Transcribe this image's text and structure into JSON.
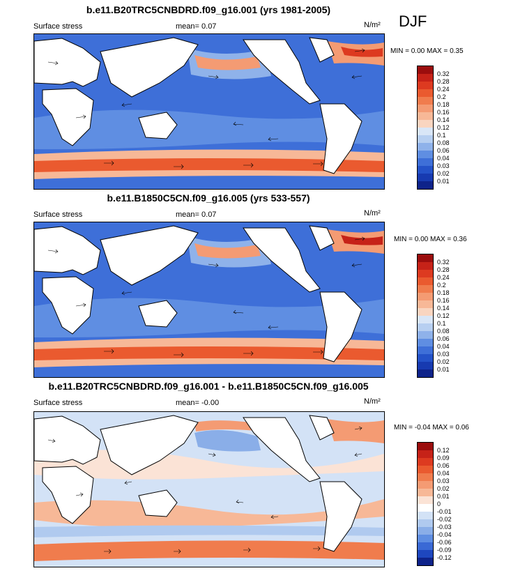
{
  "season": "DJF",
  "panels": [
    {
      "title": "b.e11.B20TRC5CNBDRD.f09_g16.001 (yrs 1981-2005)",
      "variable": "Surface stress",
      "mean_label": "mean=",
      "mean_value": "0.07",
      "units": "N/m²",
      "min_label": "MIN =",
      "min_value": "0.00",
      "max_label": "MAX =",
      "max_value": "0.35",
      "colorbar": {
        "levels": [
          "0.32",
          "0.28",
          "0.24",
          "0.2",
          "0.18",
          "0.16",
          "0.14",
          "0.12",
          "0.1",
          "0.08",
          "0.06",
          "0.04",
          "0.03",
          "0.02",
          "0.01"
        ],
        "colors": [
          "#9b0d0d",
          "#c62218",
          "#dd3a20",
          "#ea5a2f",
          "#f07c4d",
          "#f49b73",
          "#f7b897",
          "#f9d5c0",
          "#d9e6f7",
          "#b7cff1",
          "#8fb2ea",
          "#5f8ee2",
          "#3e6fd8",
          "#2452c8",
          "#173ab0",
          "#0e238a"
        ]
      }
    },
    {
      "title": "b.e11.B1850C5CN.f09_g16.005 (yrs 533-557)",
      "variable": "Surface stress",
      "mean_label": "mean=",
      "mean_value": "0.07",
      "units": "N/m²",
      "min_label": "MIN =",
      "min_value": "0.00",
      "max_label": "MAX =",
      "max_value": "0.36",
      "colorbar": {
        "levels": [
          "0.32",
          "0.28",
          "0.24",
          "0.2",
          "0.18",
          "0.16",
          "0.14",
          "0.12",
          "0.1",
          "0.08",
          "0.06",
          "0.04",
          "0.03",
          "0.02",
          "0.01"
        ],
        "colors": [
          "#9b0d0d",
          "#c62218",
          "#dd3a20",
          "#ea5a2f",
          "#f07c4d",
          "#f49b73",
          "#f7b897",
          "#f9d5c0",
          "#d9e6f7",
          "#b7cff1",
          "#8fb2ea",
          "#5f8ee2",
          "#3e6fd8",
          "#2452c8",
          "#173ab0",
          "#0e238a"
        ]
      }
    },
    {
      "title": "b.e11.B20TRC5CNBDRD.f09_g16.001 - b.e11.B1850C5CN.f09_g16.005",
      "variable": "Surface stress",
      "mean_label": "mean=",
      "mean_value": "-0.00",
      "units": "N/m²",
      "min_label": "MIN =",
      "min_value": "-0.04",
      "max_label": "MAX =",
      "max_value": "0.06",
      "colorbar": {
        "levels": [
          "0.12",
          "0.09",
          "0.06",
          "0.04",
          "0.03",
          "0.02",
          "0.01",
          "0",
          "-0.01",
          "-0.02",
          "-0.03",
          "-0.04",
          "-0.06",
          "-0.09",
          "-0.12"
        ],
        "colors": [
          "#9b0d0d",
          "#c62218",
          "#dd3a20",
          "#ea5a2f",
          "#f07c4d",
          "#f49b73",
          "#f7b897",
          "#fbe3d6",
          "#ffffff",
          "#d3e2f6",
          "#b0caef",
          "#8aaee8",
          "#5f8ee2",
          "#3a69d5",
          "#1e47bf",
          "#0e238a"
        ]
      }
    }
  ]
}
